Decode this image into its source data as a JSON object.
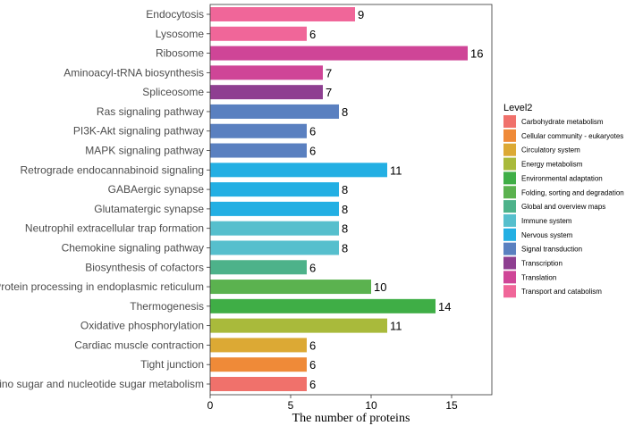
{
  "chart_data": {
    "type": "bar",
    "orientation": "horizontal",
    "title": "",
    "xlabel": "The number of proteins",
    "ylabel": "",
    "xlim": [
      0,
      17.5
    ],
    "xticks": [
      0,
      5,
      10,
      15
    ],
    "grid": false,
    "legend_position": "right",
    "legend_title": "Level2",
    "categories": [
      "Endocytosis",
      "Lysosome",
      "Ribosome",
      "Aminoacyl-tRNA biosynthesis",
      "Spliceosome",
      "Ras signaling pathway",
      "PI3K-Akt signaling pathway",
      "MAPK signaling pathway",
      "Retrograde endocannabinoid signaling",
      "GABAergic synapse",
      "Glutamatergic synapse",
      "Neutrophil extracellular trap formation",
      "Chemokine signaling pathway",
      "Biosynthesis of cofactors",
      "Protein processing in endoplasmic reticulum",
      "Thermogenesis",
      "Oxidative phosphorylation",
      "Cardiac muscle contraction",
      "Tight junction",
      "Amino sugar and nucleotide sugar metabolism"
    ],
    "values": [
      9,
      6,
      16,
      7,
      7,
      8,
      6,
      6,
      11,
      8,
      8,
      8,
      8,
      6,
      10,
      14,
      11,
      6,
      6,
      6
    ],
    "groups": [
      "Transport and catabolism",
      "Transport and catabolism",
      "Translation",
      "Translation",
      "Transcription",
      "Signal transduction",
      "Signal transduction",
      "Signal transduction",
      "Nervous system",
      "Nervous system",
      "Nervous system",
      "Immune system",
      "Immune system",
      "Global and overview maps",
      "Folding, sorting and degradation",
      "Environmental adaptation",
      "Energy metabolism",
      "Circulatory system",
      "Cellular community - eukaryotes",
      "Carbohydrate metabolism"
    ],
    "legend": [
      {
        "name": "Carbohydrate metabolism",
        "color": "#F0716B"
      },
      {
        "name": "Cellular community - eukaryotes",
        "color": "#EF8A38"
      },
      {
        "name": "Circulatory system",
        "color": "#DCA934"
      },
      {
        "name": "Energy metabolism",
        "color": "#A9BA3B"
      },
      {
        "name": "Environmental adaptation",
        "color": "#3FAE46"
      },
      {
        "name": "Folding, sorting and degradation",
        "color": "#5BB24F"
      },
      {
        "name": "Global and overview maps",
        "color": "#4DB28A"
      },
      {
        "name": "Immune system",
        "color": "#56BFCD"
      },
      {
        "name": "Nervous system",
        "color": "#23AFE3"
      },
      {
        "name": "Signal transduction",
        "color": "#5A80C0"
      },
      {
        "name": "Transcription",
        "color": "#8E3F91"
      },
      {
        "name": "Translation",
        "color": "#CF4597"
      },
      {
        "name": "Transport and catabolism",
        "color": "#F06699"
      }
    ]
  }
}
